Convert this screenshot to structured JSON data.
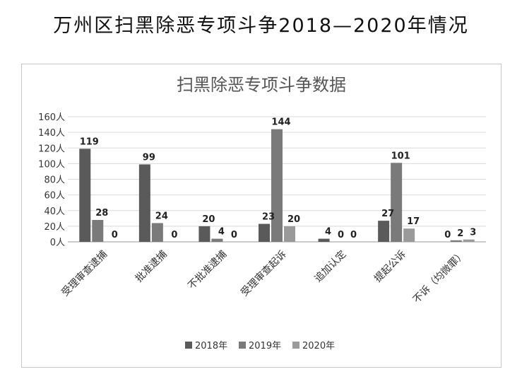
{
  "page": {
    "title": "万州区扫黑除恶专项斗争2018—2020年情况"
  },
  "chart_data": {
    "type": "bar",
    "title": "扫黑除恶专项斗争数据",
    "categories": [
      "受理审查逮捕",
      "批准逮捕",
      "不批准逮捕",
      "受理审查起诉",
      "追加认定",
      "提起公诉",
      "不诉（均微罪）"
    ],
    "series": [
      {
        "name": "2018年",
        "values": [
          119,
          99,
          20,
          23,
          4,
          27,
          0
        ],
        "color": "#5a5a5a"
      },
      {
        "name": "2019年",
        "values": [
          28,
          24,
          4,
          144,
          0,
          101,
          2
        ],
        "color": "#7a7a7a"
      },
      {
        "name": "2020年",
        "values": [
          0,
          0,
          0,
          20,
          0,
          17,
          3
        ],
        "color": "#9a9a9a"
      }
    ],
    "ylim": [
      0,
      160
    ],
    "yticks": [
      "0人",
      "20人",
      "40人",
      "60人",
      "80人",
      "100人",
      "120人",
      "140人",
      "160人"
    ],
    "grid": true,
    "legend_position": "bottom"
  }
}
